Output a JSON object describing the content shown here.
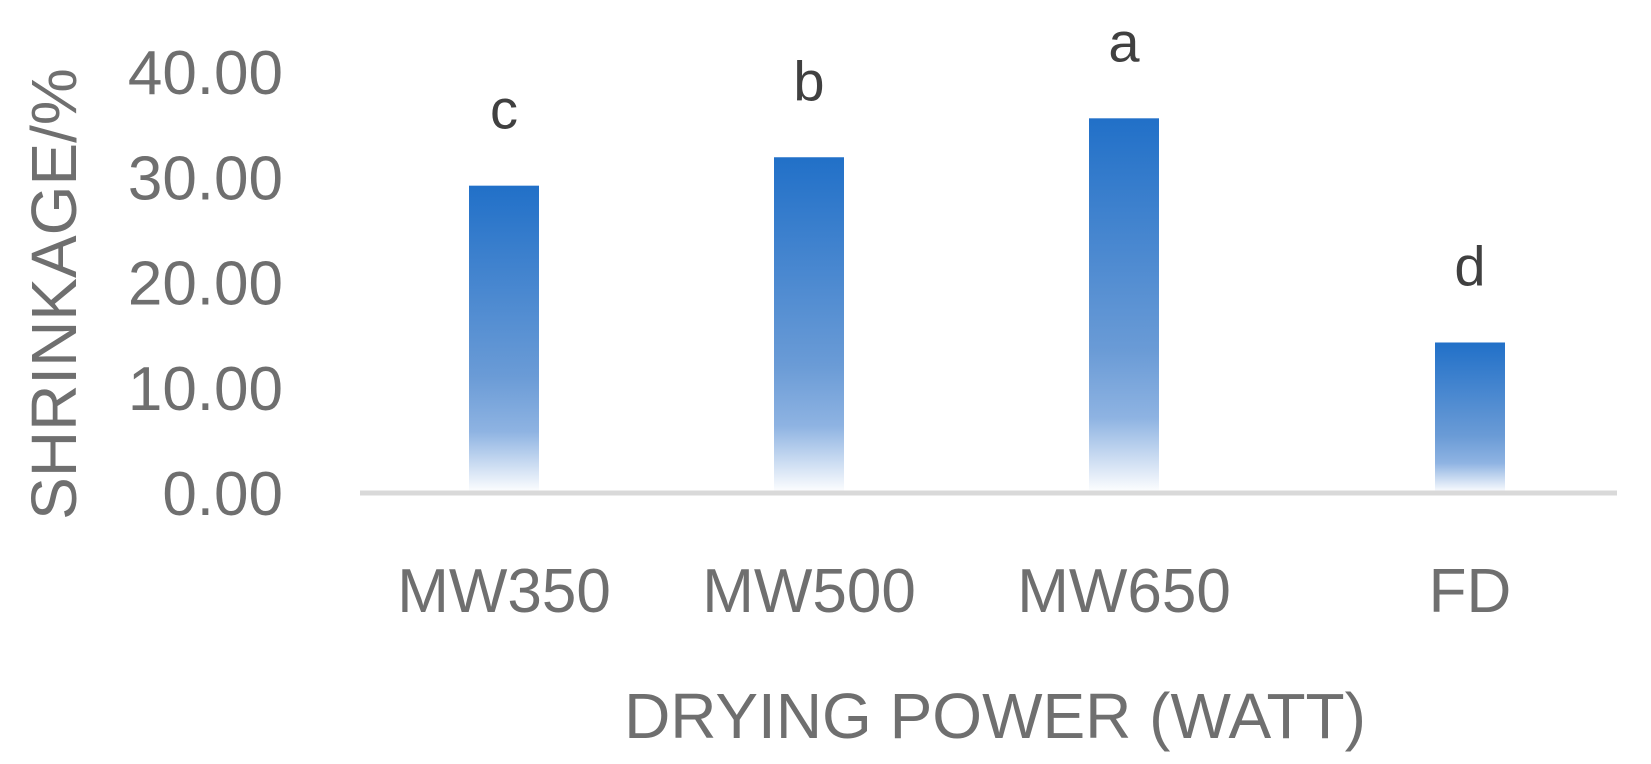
{
  "chart_data": {
    "type": "bar",
    "title": "",
    "xlabel": "DRYING POWER (WATT)",
    "ylabel": "SHRINKAGE/%",
    "categories": [
      "MW350",
      "MW500",
      "MW650",
      "FD"
    ],
    "values": [
      29.2,
      31.9,
      35.6,
      14.3
    ],
    "data_labels": [
      "c",
      "b",
      "a",
      "d"
    ],
    "ylim": [
      0,
      40
    ],
    "yticks": [
      "0.00",
      "10.00",
      "20.00",
      "30.00",
      "40.00"
    ],
    "ytick_values": [
      0,
      10,
      20,
      30,
      40
    ],
    "grid": false,
    "legend": "none",
    "colors": {
      "bar_top": "#2170c8",
      "bar_mid": "#6a9bd6",
      "bar_bottom": "#ffffff",
      "axis_line": "#d9d9d9",
      "text": "#6f6f6f",
      "data_label_text": "#404040"
    }
  }
}
